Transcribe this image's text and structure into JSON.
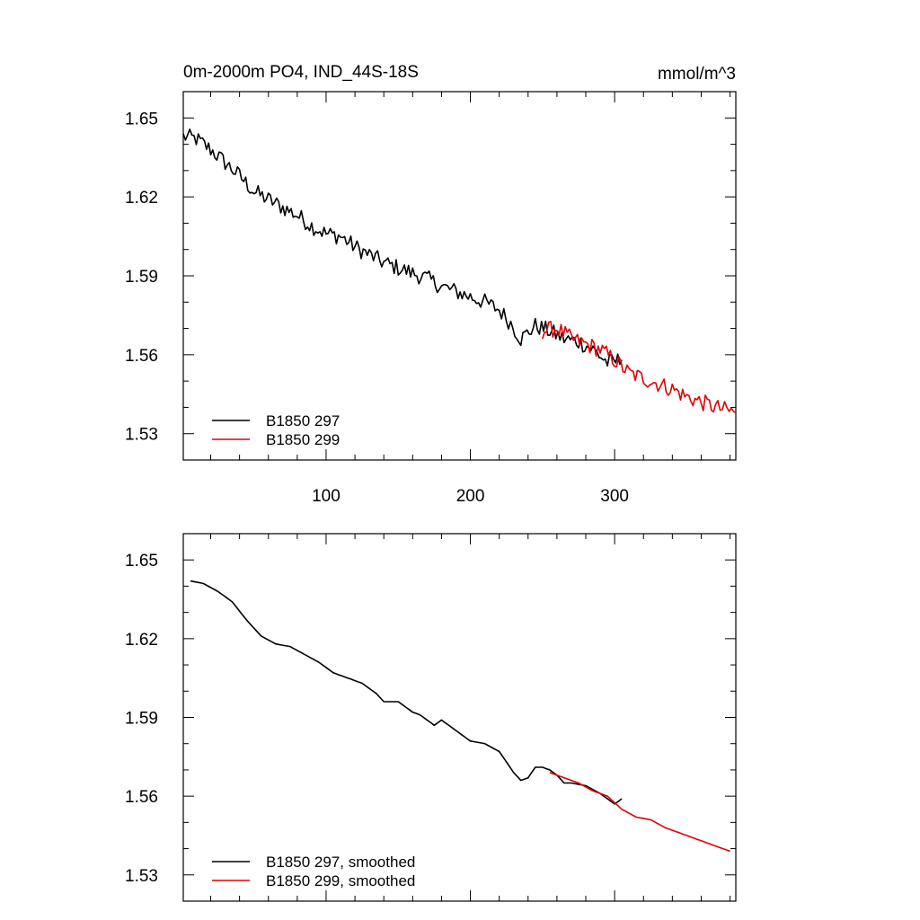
{
  "chart_data": [
    {
      "type": "line",
      "title": "0m-2000m PO4, IND_44S-18S",
      "units": "mmol/m^3",
      "xlabel": "",
      "ylabel": "",
      "xlim": [
        1,
        384
      ],
      "ylim": [
        1.52,
        1.66
      ],
      "xticks": [
        100,
        200,
        300
      ],
      "xtick_labels": [
        "100",
        "200",
        "300"
      ],
      "yticks": [
        1.53,
        1.56,
        1.59,
        1.62,
        1.65
      ],
      "ytick_labels": [
        "1.53",
        "1.56",
        "1.59",
        "1.62",
        "1.65"
      ],
      "legend_position": "bottom-left",
      "series": [
        {
          "name": "B1850 297",
          "color": "#000000",
          "x": [
            1,
            10,
            20,
            30,
            40,
            50,
            60,
            70,
            80,
            90,
            100,
            110,
            120,
            130,
            140,
            150,
            160,
            170,
            180,
            190,
            200,
            210,
            220,
            228,
            235,
            245,
            255,
            265,
            275,
            285,
            295,
            305
          ],
          "values": [
            1.643,
            1.642,
            1.638,
            1.633,
            1.628,
            1.622,
            1.619,
            1.616,
            1.613,
            1.609,
            1.606,
            1.605,
            1.601,
            1.598,
            1.595,
            1.593,
            1.591,
            1.589,
            1.586,
            1.584,
            1.582,
            1.58,
            1.577,
            1.572,
            1.566,
            1.571,
            1.569,
            1.566,
            1.565,
            1.562,
            1.557,
            1.558
          ]
        },
        {
          "name": "B1850 299",
          "color": "#e00000",
          "x": [
            250,
            260,
            270,
            280,
            290,
            300,
            310,
            320,
            330,
            340,
            350,
            360,
            370,
            384
          ],
          "values": [
            1.569,
            1.57,
            1.566,
            1.564,
            1.562,
            1.558,
            1.553,
            1.551,
            1.549,
            1.547,
            1.544,
            1.542,
            1.54,
            1.538
          ]
        }
      ]
    },
    {
      "type": "line",
      "title": "",
      "xlabel": "",
      "ylabel": "",
      "xlim": [
        1,
        384
      ],
      "ylim": [
        1.52,
        1.66
      ],
      "xticks": [
        100,
        200,
        300
      ],
      "yticks": [
        1.53,
        1.56,
        1.59,
        1.62,
        1.65
      ],
      "ytick_labels": [
        "1.53",
        "1.56",
        "1.59",
        "1.62",
        "1.65"
      ],
      "legend_position": "bottom-left",
      "series": [
        {
          "name": "B1850 297, smoothed",
          "color": "#000000",
          "x": [
            6,
            15,
            25,
            35,
            45,
            55,
            65,
            75,
            85,
            95,
            105,
            115,
            125,
            135,
            140,
            150,
            160,
            165,
            175,
            180,
            190,
            200,
            210,
            220,
            230,
            235,
            240,
            245,
            250,
            255,
            260,
            265,
            270,
            280,
            290,
            300,
            305
          ],
          "values": [
            1.642,
            1.641,
            1.638,
            1.634,
            1.627,
            1.621,
            1.618,
            1.617,
            1.614,
            1.611,
            1.607,
            1.605,
            1.603,
            1.599,
            1.596,
            1.596,
            1.592,
            1.591,
            1.587,
            1.589,
            1.585,
            1.581,
            1.58,
            1.577,
            1.569,
            1.566,
            1.567,
            1.571,
            1.571,
            1.57,
            1.568,
            1.565,
            1.565,
            1.564,
            1.561,
            1.557,
            1.559
          ]
        },
        {
          "name": "B1850 299, smoothed",
          "color": "#e00000",
          "x": [
            255,
            265,
            275,
            285,
            295,
            305,
            315,
            325,
            335,
            345,
            355,
            365,
            375,
            380
          ],
          "values": [
            1.569,
            1.567,
            1.565,
            1.562,
            1.56,
            1.555,
            1.552,
            1.551,
            1.548,
            1.546,
            1.544,
            1.542,
            1.54,
            1.539
          ]
        }
      ]
    }
  ]
}
